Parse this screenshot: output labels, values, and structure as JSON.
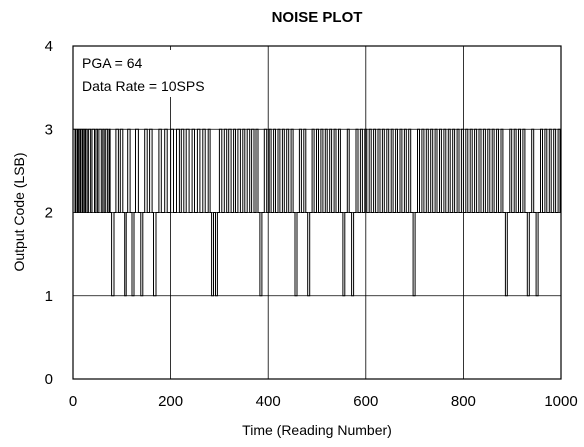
{
  "chart_data": {
    "type": "line",
    "title": "NOISE PLOT",
    "xlabel": "Time (Reading Number)",
    "ylabel": "Output Code (LSB)",
    "xlim": [
      0,
      1000
    ],
    "ylim": [
      0,
      4
    ],
    "xticks": [
      "0",
      "200",
      "400",
      "600",
      "800",
      "1000"
    ],
    "yticks": [
      "0",
      "1",
      "2",
      "3",
      "4"
    ],
    "grid": true,
    "annotations": [
      "PGA = 64",
      "Data Rate = 10SPS"
    ],
    "series": [
      {
        "color": "#000000",
        "segments": [
          [
            0,
            3
          ],
          [
            4,
            2
          ],
          [
            6,
            3
          ],
          [
            9,
            2
          ],
          [
            11,
            3
          ],
          [
            14,
            2
          ],
          [
            16,
            3
          ],
          [
            19,
            2
          ],
          [
            21,
            3
          ],
          [
            24,
            2
          ],
          [
            26,
            3
          ],
          [
            29,
            2
          ],
          [
            32,
            3
          ],
          [
            36,
            2
          ],
          [
            39,
            3
          ],
          [
            44,
            2
          ],
          [
            47,
            3
          ],
          [
            50,
            2
          ],
          [
            53,
            3
          ],
          [
            58,
            2
          ],
          [
            61,
            3
          ],
          [
            64,
            2
          ],
          [
            67,
            3
          ],
          [
            71,
            2
          ],
          [
            74,
            3
          ],
          [
            76,
            2
          ],
          [
            79,
            1
          ],
          [
            84,
            2
          ],
          [
            88,
            3
          ],
          [
            93,
            2
          ],
          [
            97,
            3
          ],
          [
            102,
            2
          ],
          [
            106,
            1
          ],
          [
            109,
            2
          ],
          [
            112,
            3
          ],
          [
            117,
            2
          ],
          [
            121,
            1
          ],
          [
            125,
            2
          ],
          [
            128,
            3
          ],
          [
            134,
            2
          ],
          [
            139,
            1
          ],
          [
            143,
            2
          ],
          [
            147,
            3
          ],
          [
            152,
            2
          ],
          [
            157,
            3
          ],
          [
            162,
            2
          ],
          [
            165,
            1
          ],
          [
            170,
            2
          ],
          [
            176,
            3
          ],
          [
            181,
            2
          ],
          [
            188,
            3
          ],
          [
            193,
            2
          ],
          [
            200,
            3
          ],
          [
            206,
            2
          ],
          [
            212,
            3
          ],
          [
            218,
            2
          ],
          [
            222,
            3
          ],
          [
            227,
            2
          ],
          [
            232,
            3
          ],
          [
            238,
            2
          ],
          [
            244,
            3
          ],
          [
            249,
            2
          ],
          [
            255,
            3
          ],
          [
            260,
            2
          ],
          [
            266,
            3
          ],
          [
            271,
            2
          ],
          [
            277,
            3
          ],
          [
            281,
            2
          ],
          [
            284,
            1
          ],
          [
            288,
            2
          ],
          [
            292,
            1
          ],
          [
            296,
            2
          ],
          [
            300,
            3
          ],
          [
            305,
            2
          ],
          [
            310,
            3
          ],
          [
            315,
            2
          ],
          [
            319,
            3
          ],
          [
            324,
            2
          ],
          [
            329,
            3
          ],
          [
            333,
            2
          ],
          [
            338,
            3
          ],
          [
            343,
            2
          ],
          [
            348,
            3
          ],
          [
            352,
            2
          ],
          [
            357,
            3
          ],
          [
            362,
            2
          ],
          [
            366,
            3
          ],
          [
            371,
            2
          ],
          [
            375,
            3
          ],
          [
            379,
            2
          ],
          [
            383,
            1
          ],
          [
            387,
            2
          ],
          [
            392,
            3
          ],
          [
            397,
            2
          ],
          [
            402,
            3
          ],
          [
            406,
            2
          ],
          [
            411,
            3
          ],
          [
            415,
            2
          ],
          [
            420,
            3
          ],
          [
            424,
            2
          ],
          [
            429,
            3
          ],
          [
            433,
            2
          ],
          [
            438,
            3
          ],
          [
            442,
            2
          ],
          [
            447,
            3
          ],
          [
            451,
            2
          ],
          [
            455,
            1
          ],
          [
            459,
            2
          ],
          [
            464,
            3
          ],
          [
            468,
            2
          ],
          [
            473,
            3
          ],
          [
            477,
            2
          ],
          [
            481,
            1
          ],
          [
            485,
            2
          ],
          [
            490,
            3
          ],
          [
            494,
            2
          ],
          [
            499,
            3
          ],
          [
            503,
            2
          ],
          [
            508,
            3
          ],
          [
            512,
            2
          ],
          [
            517,
            3
          ],
          [
            521,
            2
          ],
          [
            526,
            3
          ],
          [
            530,
            2
          ],
          [
            535,
            3
          ],
          [
            539,
            2
          ],
          [
            544,
            3
          ],
          [
            548,
            2
          ],
          [
            553,
            1
          ],
          [
            557,
            2
          ],
          [
            562,
            3
          ],
          [
            566,
            2
          ],
          [
            571,
            1
          ],
          [
            575,
            2
          ],
          [
            580,
            3
          ],
          [
            584,
            2
          ],
          [
            589,
            3
          ],
          [
            593,
            2
          ],
          [
            598,
            3
          ],
          [
            602,
            2
          ],
          [
            607,
            3
          ],
          [
            611,
            2
          ],
          [
            616,
            3
          ],
          [
            620,
            2
          ],
          [
            625,
            3
          ],
          [
            629,
            2
          ],
          [
            634,
            3
          ],
          [
            638,
            2
          ],
          [
            643,
            3
          ],
          [
            647,
            2
          ],
          [
            652,
            3
          ],
          [
            656,
            2
          ],
          [
            661,
            3
          ],
          [
            665,
            2
          ],
          [
            670,
            3
          ],
          [
            674,
            2
          ],
          [
            679,
            3
          ],
          [
            683,
            2
          ],
          [
            688,
            3
          ],
          [
            692,
            2
          ],
          [
            697,
            1
          ],
          [
            701,
            2
          ],
          [
            706,
            3
          ],
          [
            710,
            2
          ],
          [
            715,
            3
          ],
          [
            719,
            2
          ],
          [
            724,
            3
          ],
          [
            728,
            2
          ],
          [
            733,
            3
          ],
          [
            737,
            2
          ],
          [
            742,
            3
          ],
          [
            746,
            2
          ],
          [
            751,
            3
          ],
          [
            755,
            2
          ],
          [
            760,
            3
          ],
          [
            764,
            2
          ],
          [
            769,
            3
          ],
          [
            773,
            2
          ],
          [
            778,
            3
          ],
          [
            782,
            2
          ],
          [
            787,
            3
          ],
          [
            791,
            2
          ],
          [
            796,
            3
          ],
          [
            800,
            2
          ],
          [
            805,
            3
          ],
          [
            809,
            2
          ],
          [
            814,
            3
          ],
          [
            818,
            2
          ],
          [
            823,
            3
          ],
          [
            827,
            2
          ],
          [
            832,
            3
          ],
          [
            836,
            2
          ],
          [
            841,
            3
          ],
          [
            845,
            2
          ],
          [
            850,
            3
          ],
          [
            854,
            2
          ],
          [
            859,
            3
          ],
          [
            863,
            2
          ],
          [
            868,
            3
          ],
          [
            872,
            2
          ],
          [
            877,
            3
          ],
          [
            881,
            2
          ],
          [
            886,
            1
          ],
          [
            890,
            2
          ],
          [
            895,
            3
          ],
          [
            899,
            2
          ],
          [
            904,
            3
          ],
          [
            908,
            2
          ],
          [
            913,
            3
          ],
          [
            917,
            2
          ],
          [
            922,
            3
          ],
          [
            926,
            2
          ],
          [
            931,
            1
          ],
          [
            935,
            2
          ],
          [
            940,
            3
          ],
          [
            944,
            2
          ],
          [
            949,
            1
          ],
          [
            953,
            2
          ],
          [
            958,
            3
          ],
          [
            962,
            2
          ],
          [
            967,
            3
          ],
          [
            971,
            2
          ],
          [
            976,
            3
          ],
          [
            980,
            2
          ],
          [
            985,
            3
          ],
          [
            989,
            2
          ],
          [
            994,
            3
          ],
          [
            998,
            2
          ],
          [
            1000,
            2
          ]
        ]
      }
    ]
  }
}
